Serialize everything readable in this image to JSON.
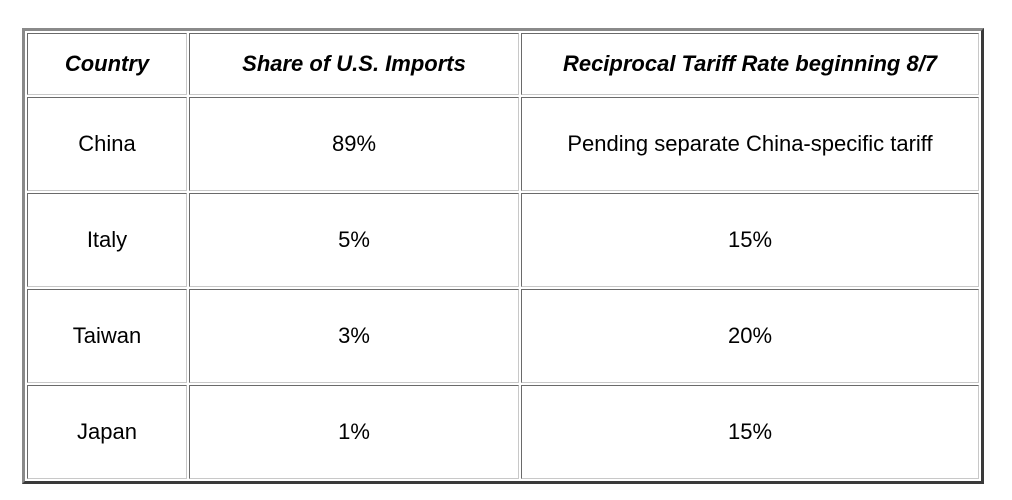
{
  "table": {
    "headers": [
      "Country",
      "Share of U.S. Imports",
      "Reciprocal Tariff Rate beginning 8/7"
    ],
    "rows": [
      [
        "China",
        "89%",
        "Pending separate China-specific tariff"
      ],
      [
        "Italy",
        "5%",
        "15%"
      ],
      [
        "Taiwan",
        "3%",
        "20%"
      ],
      [
        "Japan",
        "1%",
        "15%"
      ]
    ]
  },
  "colors": {
    "border_light": "#c8c8c8",
    "border_dark": "#6a6a6a",
    "text": "#000000",
    "background": "#ffffff"
  }
}
